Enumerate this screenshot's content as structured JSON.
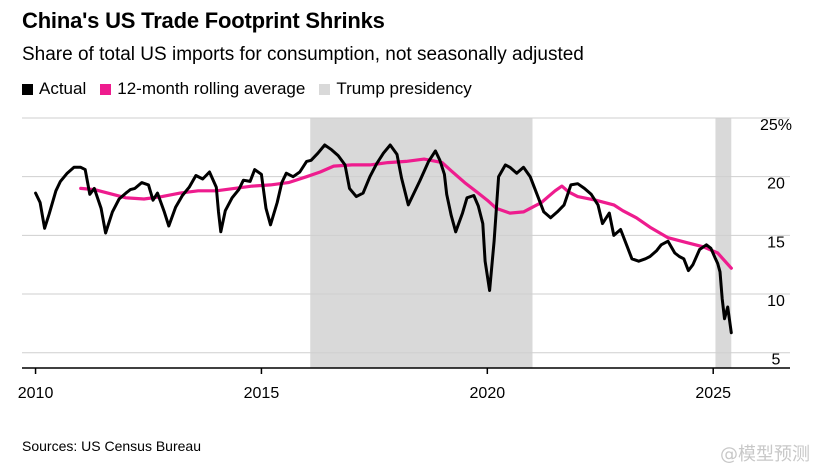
{
  "header": {
    "title": "China's US Trade Footprint Shrinks",
    "subtitle": "Share of total US imports for consumption, not seasonally adjusted"
  },
  "legend": {
    "items": [
      {
        "label": "Actual",
        "color": "#000000"
      },
      {
        "label": "12-month rolling average",
        "color": "#ee1c8e"
      },
      {
        "label": "Trump presidency",
        "color": "#d9d9d9"
      }
    ]
  },
  "footer": {
    "source": "Sources: US Census Bureau",
    "watermark": "@模型预测"
  },
  "chart_data": {
    "type": "line",
    "title": "China's US Trade Footprint Shrinks",
    "subtitle": "Share of total US imports for consumption, not seasonally adjusted",
    "xlabel": "",
    "ylabel": "",
    "xlim": [
      2009.7,
      2026.7
    ],
    "ylim": [
      3.7,
      25
    ],
    "x_ticks": [
      2010,
      2015,
      2020,
      2025
    ],
    "y_ticks": [
      5,
      10,
      15,
      20,
      25
    ],
    "y_tick_labels": [
      "5",
      "10",
      "15",
      "20",
      "25%"
    ],
    "grid": "horizontal",
    "legend_position": "top-left",
    "shaded_periods": [
      {
        "name": "Trump presidency",
        "start": 2016.08,
        "end": 2021.0
      },
      {
        "name": "Trump presidency",
        "start": 2025.05,
        "end": 2025.4
      }
    ],
    "series": [
      {
        "name": "Actual",
        "color": "#000000",
        "points": [
          [
            2010.0,
            18.6
          ],
          [
            2010.1,
            17.8
          ],
          [
            2010.2,
            15.6
          ],
          [
            2010.3,
            16.8
          ],
          [
            2010.45,
            18.8
          ],
          [
            2010.55,
            19.6
          ],
          [
            2010.7,
            20.3
          ],
          [
            2010.85,
            20.8
          ],
          [
            2011.0,
            20.8
          ],
          [
            2011.1,
            20.6
          ],
          [
            2011.2,
            18.5
          ],
          [
            2011.3,
            19.0
          ],
          [
            2011.45,
            17.3
          ],
          [
            2011.55,
            15.2
          ],
          [
            2011.7,
            17.0
          ],
          [
            2011.85,
            18.1
          ],
          [
            2012.0,
            18.6
          ],
          [
            2012.1,
            18.9
          ],
          [
            2012.2,
            19.0
          ],
          [
            2012.35,
            19.5
          ],
          [
            2012.5,
            19.3
          ],
          [
            2012.6,
            18.0
          ],
          [
            2012.7,
            18.6
          ],
          [
            2012.85,
            17.0
          ],
          [
            2012.95,
            15.8
          ],
          [
            2013.1,
            17.4
          ],
          [
            2013.25,
            18.4
          ],
          [
            2013.4,
            19.1
          ],
          [
            2013.55,
            20.1
          ],
          [
            2013.7,
            19.8
          ],
          [
            2013.85,
            20.4
          ],
          [
            2014.0,
            19.1
          ],
          [
            2014.05,
            17.0
          ],
          [
            2014.1,
            15.3
          ],
          [
            2014.2,
            17.1
          ],
          [
            2014.35,
            18.2
          ],
          [
            2014.5,
            18.9
          ],
          [
            2014.6,
            19.7
          ],
          [
            2014.75,
            19.6
          ],
          [
            2014.85,
            20.6
          ],
          [
            2015.0,
            20.2
          ],
          [
            2015.1,
            17.3
          ],
          [
            2015.2,
            15.9
          ],
          [
            2015.35,
            17.8
          ],
          [
            2015.45,
            19.5
          ],
          [
            2015.55,
            20.3
          ],
          [
            2015.7,
            20.0
          ],
          [
            2015.85,
            20.4
          ],
          [
            2016.0,
            21.3
          ],
          [
            2016.1,
            21.4
          ],
          [
            2016.25,
            22.0
          ],
          [
            2016.4,
            22.7
          ],
          [
            2016.55,
            22.3
          ],
          [
            2016.7,
            21.8
          ],
          [
            2016.85,
            21.0
          ],
          [
            2016.95,
            19.0
          ],
          [
            2017.1,
            18.3
          ],
          [
            2017.25,
            18.6
          ],
          [
            2017.4,
            20.0
          ],
          [
            2017.55,
            21.1
          ],
          [
            2017.7,
            22.0
          ],
          [
            2017.85,
            22.7
          ],
          [
            2018.0,
            21.9
          ],
          [
            2018.1,
            19.9
          ],
          [
            2018.25,
            17.6
          ],
          [
            2018.35,
            18.4
          ],
          [
            2018.5,
            19.6
          ],
          [
            2018.7,
            21.3
          ],
          [
            2018.85,
            22.2
          ],
          [
            2018.95,
            21.4
          ],
          [
            2019.05,
            20.2
          ],
          [
            2019.1,
            18.5
          ],
          [
            2019.2,
            16.7
          ],
          [
            2019.3,
            15.3
          ],
          [
            2019.45,
            16.9
          ],
          [
            2019.55,
            18.2
          ],
          [
            2019.7,
            18.4
          ],
          [
            2019.8,
            17.5
          ],
          [
            2019.9,
            16.0
          ],
          [
            2019.95,
            12.8
          ],
          [
            2020.05,
            10.3
          ],
          [
            2020.15,
            14.5
          ],
          [
            2020.25,
            20.0
          ],
          [
            2020.4,
            21.0
          ],
          [
            2020.5,
            20.8
          ],
          [
            2020.65,
            20.3
          ],
          [
            2020.8,
            20.8
          ],
          [
            2020.95,
            20.0
          ],
          [
            2021.1,
            18.5
          ],
          [
            2021.25,
            17.0
          ],
          [
            2021.4,
            16.5
          ],
          [
            2021.55,
            17.0
          ],
          [
            2021.7,
            17.6
          ],
          [
            2021.85,
            19.3
          ],
          [
            2022.0,
            19.4
          ],
          [
            2022.15,
            19.0
          ],
          [
            2022.3,
            18.5
          ],
          [
            2022.45,
            17.6
          ],
          [
            2022.55,
            16.0
          ],
          [
            2022.7,
            16.9
          ],
          [
            2022.8,
            15.0
          ],
          [
            2022.95,
            15.5
          ],
          [
            2023.1,
            14.0
          ],
          [
            2023.2,
            13.0
          ],
          [
            2023.35,
            12.8
          ],
          [
            2023.5,
            13.0
          ],
          [
            2023.6,
            13.2
          ],
          [
            2023.75,
            13.7
          ],
          [
            2023.85,
            14.2
          ],
          [
            2024.0,
            14.5
          ],
          [
            2024.15,
            13.5
          ],
          [
            2024.25,
            13.2
          ],
          [
            2024.35,
            13.0
          ],
          [
            2024.45,
            12.0
          ],
          [
            2024.55,
            12.5
          ],
          [
            2024.7,
            13.8
          ],
          [
            2024.85,
            14.2
          ],
          [
            2024.95,
            13.9
          ],
          [
            2025.05,
            13.0
          ],
          [
            2025.1,
            12.6
          ],
          [
            2025.15,
            11.9
          ],
          [
            2025.2,
            9.6
          ],
          [
            2025.25,
            7.9
          ],
          [
            2025.32,
            8.9
          ],
          [
            2025.4,
            6.7
          ]
        ]
      },
      {
        "name": "12-month rolling average",
        "color": "#ee1c8e",
        "points": [
          [
            2011.0,
            19.0
          ],
          [
            2011.3,
            18.9
          ],
          [
            2011.6,
            18.6
          ],
          [
            2012.0,
            18.2
          ],
          [
            2012.4,
            18.1
          ],
          [
            2012.8,
            18.3
          ],
          [
            2013.2,
            18.6
          ],
          [
            2013.6,
            18.8
          ],
          [
            2014.0,
            18.8
          ],
          [
            2014.4,
            19.0
          ],
          [
            2014.8,
            19.2
          ],
          [
            2015.2,
            19.3
          ],
          [
            2015.6,
            19.5
          ],
          [
            2016.0,
            20.0
          ],
          [
            2016.3,
            20.4
          ],
          [
            2016.6,
            20.9
          ],
          [
            2017.0,
            21.0
          ],
          [
            2017.4,
            21.0
          ],
          [
            2017.8,
            21.2
          ],
          [
            2018.2,
            21.3
          ],
          [
            2018.6,
            21.5
          ],
          [
            2019.0,
            21.2
          ],
          [
            2019.2,
            20.5
          ],
          [
            2019.5,
            19.5
          ],
          [
            2019.8,
            18.6
          ],
          [
            2020.0,
            18.0
          ],
          [
            2020.2,
            17.3
          ],
          [
            2020.5,
            16.9
          ],
          [
            2020.8,
            17.0
          ],
          [
            2021.0,
            17.4
          ],
          [
            2021.2,
            17.8
          ],
          [
            2021.35,
            18.3
          ],
          [
            2021.5,
            18.8
          ],
          [
            2021.65,
            19.2
          ],
          [
            2021.8,
            18.7
          ],
          [
            2022.0,
            18.3
          ],
          [
            2022.4,
            18.0
          ],
          [
            2022.8,
            17.6
          ],
          [
            2023.0,
            17.1
          ],
          [
            2023.3,
            16.5
          ],
          [
            2023.6,
            15.7
          ],
          [
            2024.0,
            14.8
          ],
          [
            2024.4,
            14.4
          ],
          [
            2024.8,
            14.0
          ],
          [
            2025.1,
            13.5
          ],
          [
            2025.4,
            12.2
          ]
        ]
      }
    ]
  }
}
